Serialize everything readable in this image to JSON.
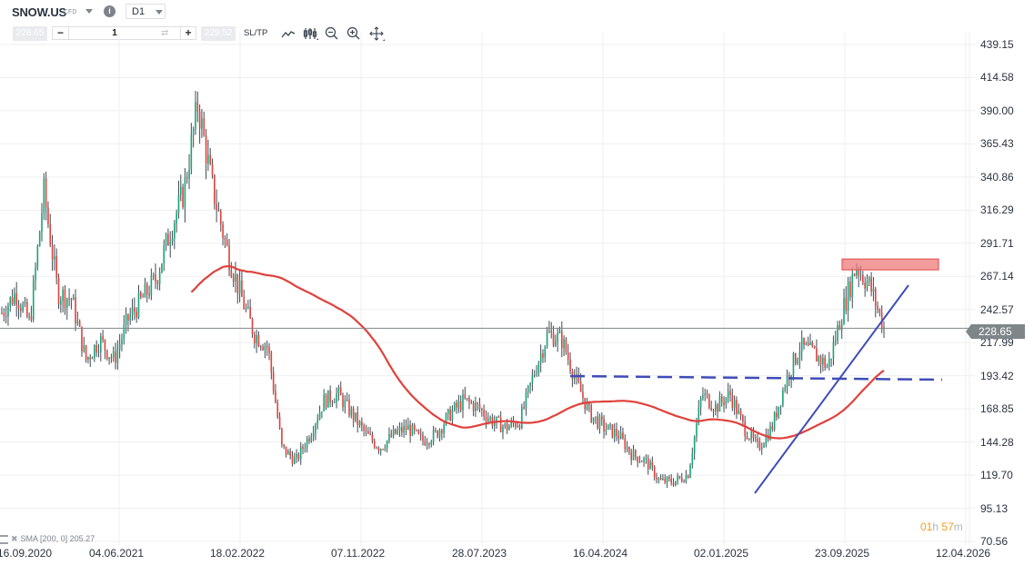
{
  "header": {
    "symbol": "SNOW.US",
    "instrument_type": "CFD",
    "info_icon": "info-icon",
    "timeframe": "D1"
  },
  "trade_bar": {
    "sell_price": "228.65",
    "volume": "1",
    "buy_price": "229.52",
    "sltp_label": "SL/TP",
    "tools": [
      "line-chart-icon",
      "candlestick-chart-icon",
      "zoom-out-icon",
      "zoom-in-icon",
      "move-icon"
    ]
  },
  "current_price": "228.65",
  "timer": {
    "hours": "01",
    "h": "h",
    "minutes": "57",
    "m": "m"
  },
  "indicator_legend": "SMA [200, 0] 205.27",
  "colors": {
    "up": "#1aa37a",
    "down": "#e0413b",
    "wick": "#3f4a55",
    "sma": "#e0413b",
    "trendline": "#3f4db8",
    "resistance_box": "#ee7b7b",
    "grid": "#efefef",
    "price_line": "#7f8689",
    "timer": "#f39c1e"
  },
  "chart_data": {
    "type": "candlestick",
    "title": "SNOW.US CFD D1",
    "ylim": [
      70.56,
      439.15
    ],
    "y_ticks": [
      "439.15",
      "414.58",
      "390.00",
      "365.43",
      "340.86",
      "316.29",
      "291.71",
      "267.14",
      "242.57",
      "217.99",
      "193.42",
      "168.85",
      "144.28",
      "119.70",
      "95.13",
      "70.56"
    ],
    "x_ticks": [
      "16.09.2020",
      "04.06.2021",
      "18.02.2022",
      "07.11.2022",
      "28.07.2023",
      "16.04.2024",
      "02.01.2025",
      "23.09.2025",
      "12.04.2026"
    ],
    "price_path": [
      [
        "16.09.2020",
        240
      ],
      [
        "10.2020",
        255
      ],
      [
        "11.2020",
        232
      ],
      [
        "12.2020",
        330
      ],
      [
        "01.2021",
        255
      ],
      [
        "02.2021",
        250
      ],
      [
        "03.2021",
        205
      ],
      [
        "04.2021",
        220
      ],
      [
        "05.2021",
        205
      ],
      [
        "06.2021",
        235
      ],
      [
        "07.2021",
        250
      ],
      [
        "08.2021",
        265
      ],
      [
        "09.2021",
        300
      ],
      [
        "10.2021",
        330
      ],
      [
        "11.2021",
        395
      ],
      [
        "12.2021",
        335
      ],
      [
        "01.2022",
        290
      ],
      [
        "02.2022",
        255
      ],
      [
        "03.2022",
        225
      ],
      [
        "04.2022",
        215
      ],
      [
        "05.2022",
        140
      ],
      [
        "06.2022",
        130
      ],
      [
        "07.2022",
        150
      ],
      [
        "08.2022",
        175
      ],
      [
        "09.2022",
        180
      ],
      [
        "10.2022",
        165
      ],
      [
        "11.2022",
        150
      ],
      [
        "12.2022",
        140
      ],
      [
        "01.2023",
        150
      ],
      [
        "02.2023",
        155
      ],
      [
        "03.2023",
        145
      ],
      [
        "04.2023",
        150
      ],
      [
        "05.2023",
        165
      ],
      [
        "06.2023",
        175
      ],
      [
        "07.2023",
        170
      ],
      [
        "08.2023",
        160
      ],
      [
        "09.2023",
        155
      ],
      [
        "10.2023",
        160
      ],
      [
        "11.2023",
        195
      ],
      [
        "12.2023",
        225
      ],
      [
        "01.2024",
        220
      ],
      [
        "02.2024",
        190
      ],
      [
        "03.2024",
        165
      ],
      [
        "04.2024",
        155
      ],
      [
        "05.2024",
        150
      ],
      [
        "06.2024",
        135
      ],
      [
        "07.2024",
        130
      ],
      [
        "08.2024",
        115
      ],
      [
        "09.2024",
        115
      ],
      [
        "10.2024",
        120
      ],
      [
        "11.2024",
        180
      ],
      [
        "12.2024",
        170
      ],
      [
        "01.2025",
        180
      ],
      [
        "02.2025",
        155
      ],
      [
        "03.2025",
        140
      ],
      [
        "04.2025",
        155
      ],
      [
        "05.2025",
        190
      ],
      [
        "06.2025",
        215
      ],
      [
        "07.2025",
        210
      ],
      [
        "08.2025",
        200
      ],
      [
        "09.2025",
        240
      ],
      [
        "10.2025",
        275
      ],
      [
        "11.2025",
        260
      ],
      [
        "12.2025",
        229
      ]
    ],
    "sma": {
      "name": "SMA [200, 0]",
      "last_value": 205.27
    },
    "annotations": [
      {
        "type": "horizontal_dashed_line",
        "value": 193.4,
        "from": "11.2023",
        "to": "03.2026"
      },
      {
        "type": "trendline",
        "from": [
          "02.2025",
          110
        ],
        "to": [
          "02.2026",
          262
        ]
      },
      {
        "type": "resistance_zone",
        "low": 272,
        "high": 280,
        "from": "10.2025",
        "to": "03.2026"
      },
      {
        "type": "price_line",
        "value": 228.65
      }
    ],
    "legend_position": "bottom-left",
    "grid": true
  }
}
